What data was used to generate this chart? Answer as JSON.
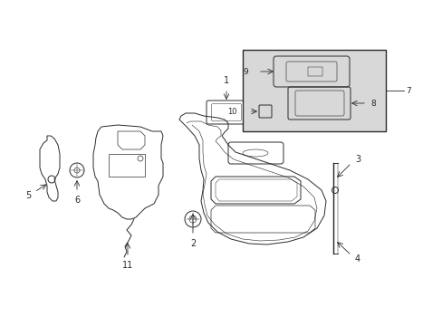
{
  "bg_color": "#ffffff",
  "line_color": "#2a2a2a",
  "inset_bg": "#d8d8d8",
  "lw": 0.7,
  "figsize": [
    4.89,
    3.6
  ],
  "dpi": 100
}
